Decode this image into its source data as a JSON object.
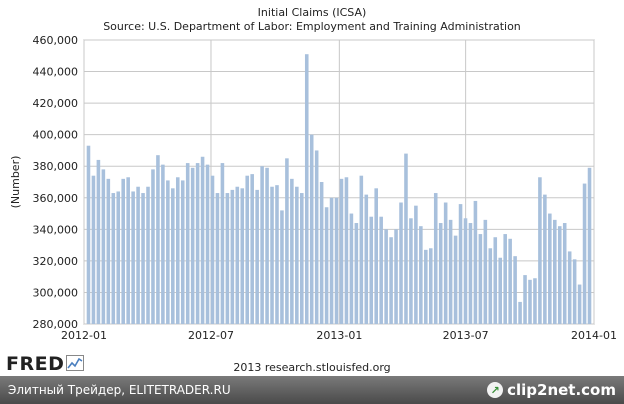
{
  "header": {
    "title": "Initial Claims (ICSA)",
    "subtitle": "Source: U.S. Department of Labor: Employment and Training Administration"
  },
  "footer": {
    "logo_text": "FRED",
    "credit": "2013 research.stlouisfed.org",
    "watermark_left": "Элитный Трейдер, ELITETRADER.RU",
    "watermark_brand": "clip2net.com"
  },
  "colors": {
    "bar": "#a8c0dc",
    "plot_bg": "#ffffff",
    "grid": "#c8c8c8",
    "footer_bar": "#5a5a5a"
  },
  "chart_data": {
    "type": "bar",
    "title": "Initial Claims (ICSA)",
    "subtitle": "Source: U.S. Department of Labor: Employment and Training Administration",
    "ylabel": "(Number)",
    "xlabel": "",
    "ylim": [
      280000,
      460000
    ],
    "y_ticks": [
      "280,000",
      "300,000",
      "320,000",
      "340,000",
      "360,000",
      "380,000",
      "400,000",
      "420,000",
      "440,000",
      "460,000"
    ],
    "y_tick_values": [
      280000,
      300000,
      320000,
      340000,
      360000,
      380000,
      400000,
      420000,
      440000,
      460000
    ],
    "x_ticks": [
      "2012-01",
      "2012-07",
      "2013-01",
      "2013-07",
      "2014-01"
    ],
    "x_range": [
      "2012-01-01",
      "2014-01-01"
    ],
    "grid": true,
    "legend": "none",
    "series": [
      {
        "values": [
          393000,
          374000,
          384000,
          378000,
          372000,
          363000,
          364000,
          372000,
          373000,
          364000,
          367000,
          363000,
          367000,
          378000,
          387000,
          381000,
          371000,
          366000,
          373000,
          371000,
          382000,
          379000,
          382000,
          386000,
          381000,
          374000,
          363000,
          382000,
          363000,
          365000,
          367000,
          366000,
          374000,
          375000,
          365000,
          380000,
          379000,
          367000,
          368000,
          352000,
          385000,
          372000,
          367000,
          363000,
          451000,
          400000,
          390000,
          370000,
          354000,
          360000,
          360000,
          372000,
          373000,
          350000,
          344000,
          374000,
          362000,
          348000,
          366000,
          348000,
          340000,
          335000,
          340000,
          357000,
          388000,
          347000,
          355000,
          342000,
          327000,
          328000,
          363000,
          344000,
          357000,
          346000,
          336000,
          356000,
          347000,
          344000,
          358000,
          337000,
          346000,
          328000,
          335000,
          322000,
          337000,
          334000,
          323000,
          294000,
          311000,
          308000,
          309000,
          373000,
          362000,
          350000,
          346000,
          342000,
          344000,
          326000,
          321000,
          305000,
          369000,
          379000
        ]
      }
    ]
  }
}
